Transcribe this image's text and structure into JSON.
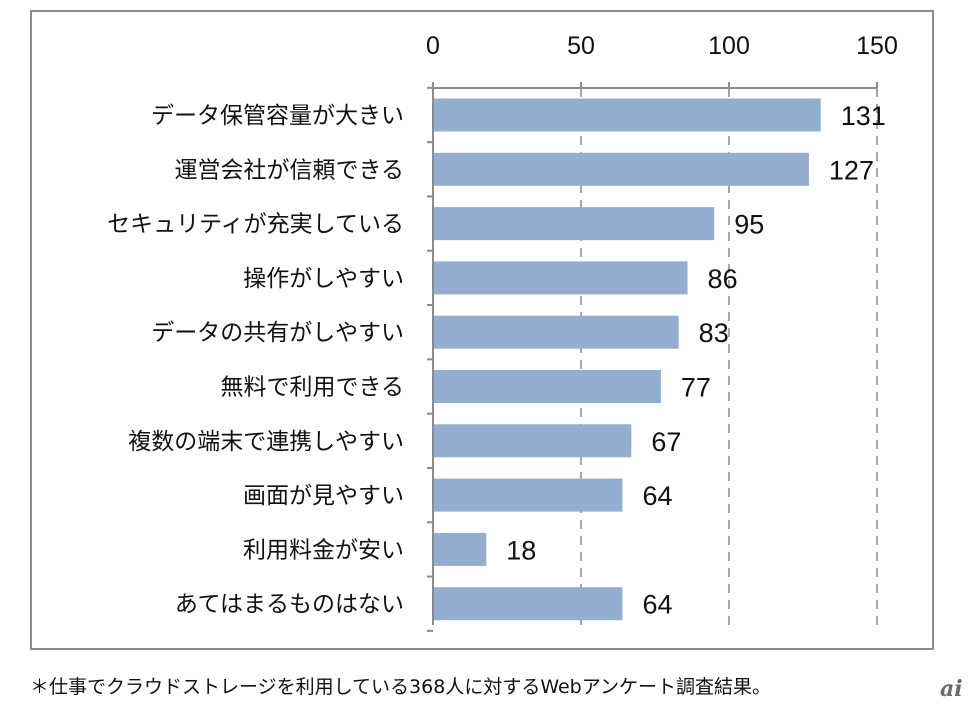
{
  "chart_data": {
    "type": "bar",
    "orientation": "horizontal",
    "categories": [
      "データ保管容量が大きい",
      "運営会社が信頼できる",
      "セキュリティが充実している",
      "操作がしやすい",
      "データの共有がしやすい",
      "無料で利用できる",
      "複数の端末で連携しやすい",
      "画面が見やすい",
      "利用料金が安い",
      "あてはまるものはない"
    ],
    "values": [
      131,
      127,
      95,
      86,
      83,
      77,
      67,
      64,
      18,
      64
    ],
    "value_labels": [
      "131",
      "127",
      "95",
      "86",
      "83",
      "77",
      "67",
      "64",
      "18",
      "64"
    ],
    "xlim": [
      0,
      150
    ],
    "x_ticks": [
      "0",
      "50",
      "100",
      "150"
    ],
    "x_tick_values": [
      0,
      50,
      100,
      150
    ],
    "axis_position": "top",
    "grid": true,
    "grid_style": "dashed vertical",
    "bar_color": "#93aed0",
    "title": "",
    "xlabel": "",
    "ylabel": ""
  },
  "footnote": "＊仕事でクラウドストレージを利用している368人に対するWebアンケート調査結果。",
  "watermark": "ai"
}
